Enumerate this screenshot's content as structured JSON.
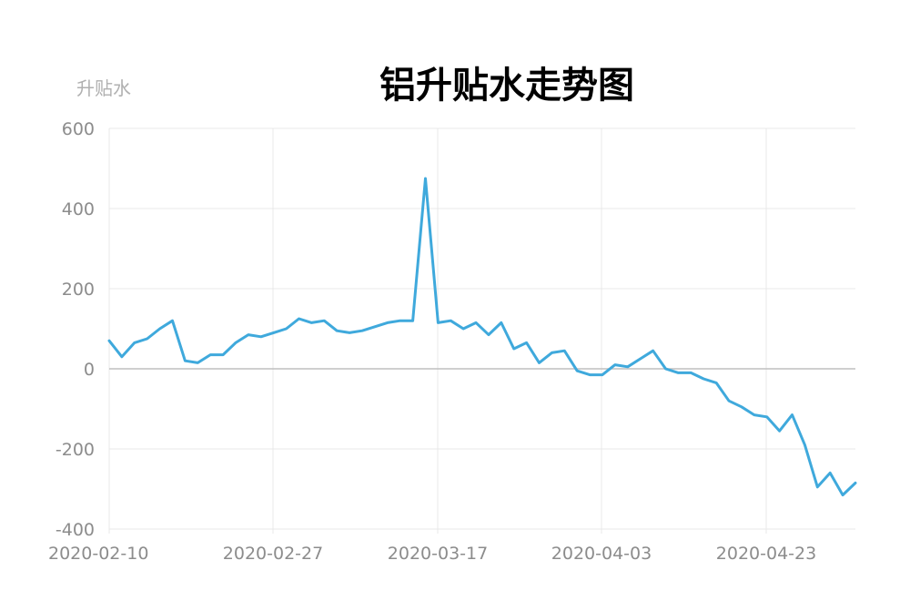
{
  "chart_data": {
    "type": "line",
    "title": "铝升贴水走势图",
    "ylabel": "升贴水",
    "xlabel": "",
    "ylim": [
      -400,
      600
    ],
    "yticks": [
      600,
      400,
      200,
      0,
      -200,
      -400
    ],
    "x_tick_labels": [
      "2020-02-10",
      "2020-02-27",
      "2020-03-17",
      "2020-04-03",
      "2020-04-23"
    ],
    "grid": true,
    "colors": {
      "line": "#3fa9dc",
      "grid": "#e8e8e8",
      "zero_axis": "#bfbfbf"
    },
    "series": [
      {
        "values": [
          70,
          30,
          65,
          75,
          100,
          120,
          20,
          15,
          35,
          35,
          65,
          85,
          80,
          90,
          100,
          125,
          115,
          120,
          95,
          90,
          95,
          105,
          115,
          120,
          120,
          475,
          115,
          120,
          100,
          115,
          85,
          115,
          50,
          65,
          15,
          40,
          45,
          -5,
          -15,
          -15,
          10,
          5,
          25,
          45,
          0,
          -10,
          -10,
          -25,
          -35,
          -80,
          -95,
          -115,
          -120,
          -155,
          -115,
          -190,
          -295,
          -260,
          -315,
          -285
        ]
      }
    ]
  }
}
